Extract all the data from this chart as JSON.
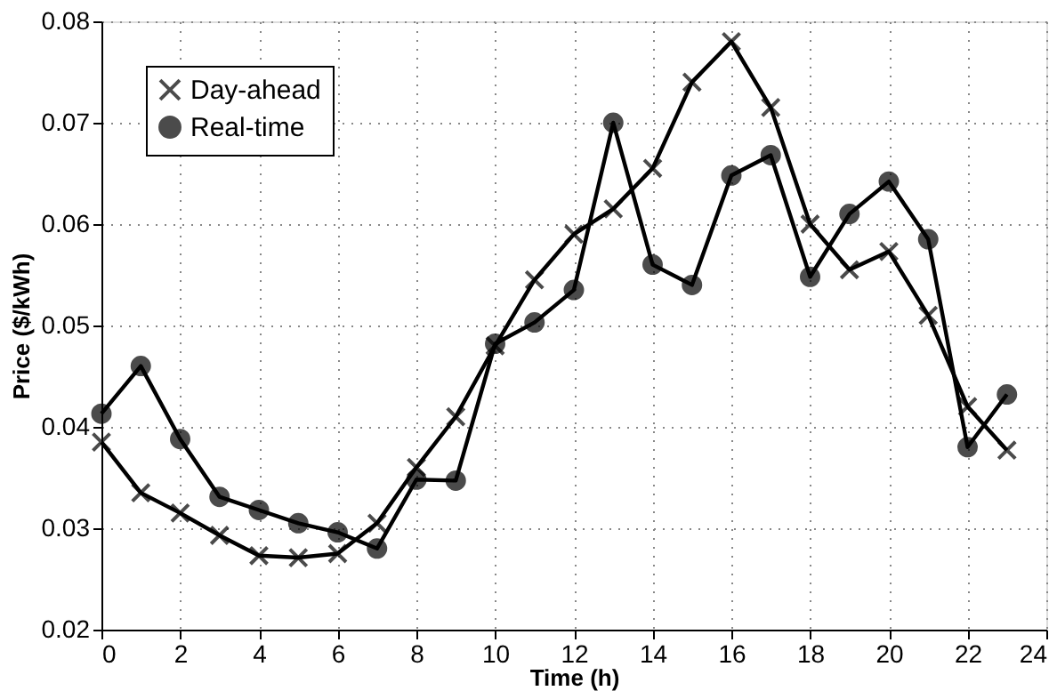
{
  "chart_data": {
    "type": "line",
    "xlabel": "Time (h)",
    "ylabel": "Price ($/kWh)",
    "x": [
      0,
      1,
      2,
      3,
      4,
      5,
      6,
      7,
      8,
      9,
      10,
      11,
      12,
      13,
      14,
      15,
      16,
      17,
      18,
      19,
      20,
      21,
      22,
      23
    ],
    "series": [
      {
        "name": "Day-ahead",
        "color": "#000000",
        "marker": "cross",
        "values": [
          0.0385,
          0.0335,
          0.0315,
          0.0293,
          0.0273,
          0.0271,
          0.0275,
          0.0305,
          0.036,
          0.041,
          0.048,
          0.0545,
          0.059,
          0.0615,
          0.0655,
          0.074,
          0.078,
          0.0715,
          0.06,
          0.0555,
          0.0573,
          0.051,
          0.042,
          0.0377
        ]
      },
      {
        "name": "Real-time",
        "color": "#000000",
        "marker": "circle",
        "values": [
          0.0413,
          0.046,
          0.0388,
          0.0331,
          0.0318,
          0.0305,
          0.0296,
          0.028,
          0.0348,
          0.0347,
          0.0482,
          0.0503,
          0.0535,
          0.07,
          0.056,
          0.054,
          0.0648,
          0.0668,
          0.0548,
          0.061,
          0.0642,
          0.0585,
          0.038,
          0.0432
        ]
      }
    ],
    "xlim": [
      0,
      24
    ],
    "xticks": [
      0,
      2,
      4,
      6,
      8,
      10,
      12,
      14,
      16,
      18,
      20,
      22,
      24
    ],
    "ylim": [
      0.02,
      0.08
    ],
    "yticks": [
      0.02,
      0.03,
      0.04,
      0.05,
      0.06,
      0.07,
      0.08
    ],
    "grid": true,
    "legend": "top left",
    "line_style": "solid"
  }
}
